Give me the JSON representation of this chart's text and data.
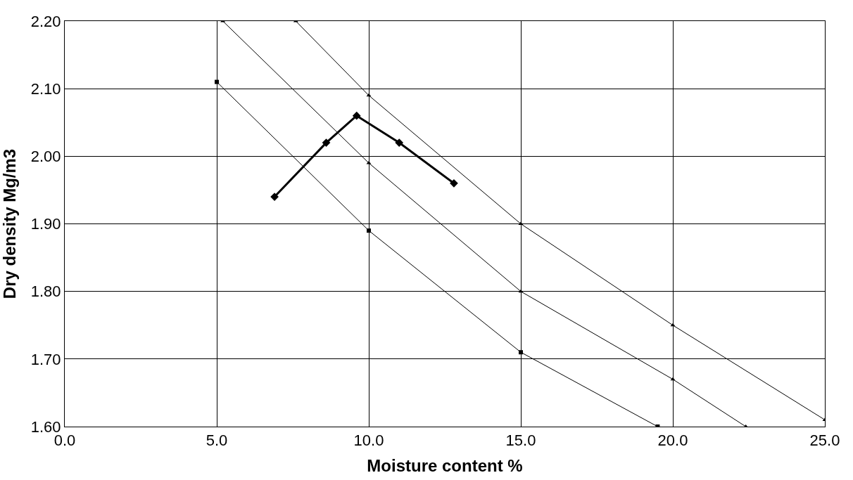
{
  "chart_data": {
    "type": "line",
    "xlabel": "Moisture content %",
    "ylabel": "Dry density Mg/m3",
    "xlim": [
      0,
      25
    ],
    "xticks": [
      {
        "value": 0,
        "label": "0.0"
      },
      {
        "value": 5,
        "label": "5.0"
      },
      {
        "value": 10,
        "label": "10.0"
      },
      {
        "value": 15,
        "label": "15.0"
      },
      {
        "value": 20,
        "label": "20.0"
      },
      {
        "value": 25,
        "label": "25.0"
      }
    ],
    "ylim": [
      1.6,
      2.2
    ],
    "yticks": [
      {
        "value": 1.6,
        "label": "1.60"
      },
      {
        "value": 1.7,
        "label": "1.70"
      },
      {
        "value": 1.8,
        "label": "1.80"
      },
      {
        "value": 1.9,
        "label": "1.90"
      },
      {
        "value": 2.0,
        "label": "2.00"
      },
      {
        "value": 2.1,
        "label": "2.10"
      },
      {
        "value": 2.2,
        "label": "2.20"
      }
    ],
    "grid": true,
    "series": [
      {
        "color": "#000000",
        "marker": "diamond",
        "x": [
          6.9,
          8.6,
          9.6,
          11.0,
          12.8
        ],
        "values": [
          1.94,
          2.02,
          2.06,
          2.02,
          1.96
        ]
      },
      {
        "color": "#000000",
        "marker": "triangle",
        "x": [
          7.6,
          10,
          15,
          20,
          25
        ],
        "values": [
          2.2,
          2.09,
          1.9,
          1.75,
          1.61
        ]
      },
      {
        "color": "#000000",
        "marker": "triangle",
        "x": [
          5.2,
          10,
          15,
          20,
          22.4
        ],
        "values": [
          2.2,
          1.99,
          1.8,
          1.67,
          1.6
        ]
      },
      {
        "color": "#000000",
        "marker": "square",
        "x": [
          5,
          10,
          15,
          19.5
        ],
        "values": [
          2.11,
          1.89,
          1.71,
          1.6
        ]
      }
    ]
  }
}
